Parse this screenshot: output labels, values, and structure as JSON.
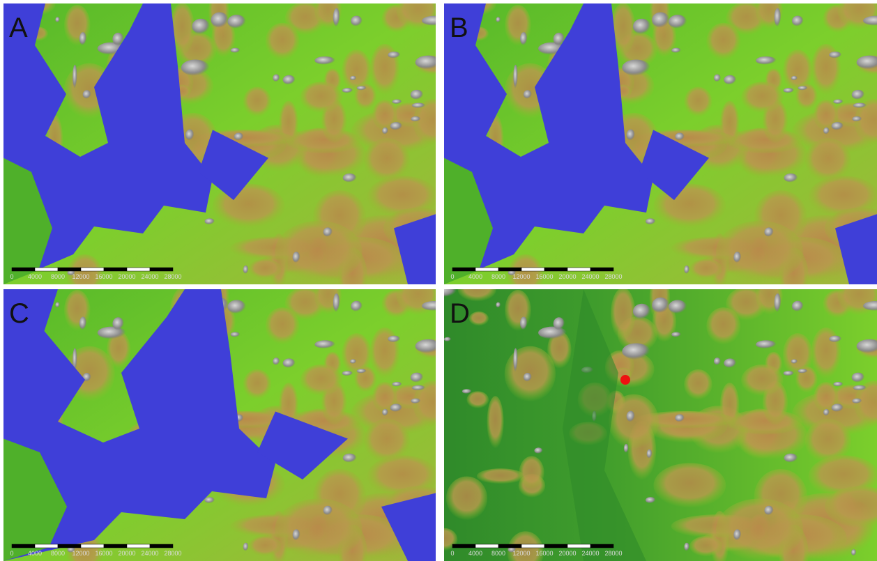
{
  "panels": [
    {
      "label": "A",
      "scale_labels": [
        "0",
        "4000",
        "8000",
        "12000",
        "16000",
        "20000",
        "24000",
        "28000"
      ]
    },
    {
      "label": "B",
      "scale_labels": [
        "0",
        "4000",
        "8000",
        "12000",
        "16000",
        "20000",
        "24000",
        "28000"
      ]
    },
    {
      "label": "C",
      "scale_labels": [
        "0",
        "4000",
        "8000",
        "12000",
        "16000",
        "20000",
        "24000",
        "28000"
      ]
    },
    {
      "label": "D",
      "scale_labels": [
        "0",
        "4000",
        "8000",
        "12000",
        "16000",
        "20000",
        "24000",
        "28000"
      ]
    }
  ]
}
